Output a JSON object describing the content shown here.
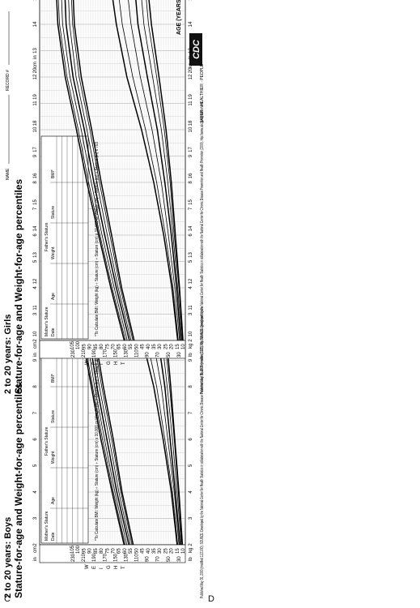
{
  "figure": {
    "panels": [
      {
        "letter": "C",
        "title_line1": "2 to 20 years: Boys",
        "title_line2": "Stature-for-age and Weight-for-age percentiles",
        "name_label": "NAME",
        "record_label": "RECORD #",
        "table_headers": [
          "Mother's Stature",
          "Father's Stature",
          "Date",
          "Age",
          "Weight",
          "Stature",
          "BMI*"
        ],
        "bmi_note": "*To Calculate BMI: Weight (kg) ÷ Stature (cm) ÷ Stature (cm) x 10,000 or Weight (lb) ÷ Stature (in) ÷ Stature (in) x 703",
        "age_caption": "AGE (YEARS)",
        "stature_letters": "STATURE",
        "weight_letters": "WEIGHT",
        "unit_in": "in",
        "unit_cm": "cm",
        "unit_kg": "kg",
        "unit_lb": "lb",
        "footer": "Published May 30, 2000 (modified 11/21/00). SOURCE: Developed by the National Center for Health Statistics in collaboration with the National Center for Chronic Disease Prevention and Health Promotion (2000). http://www.cdc.gov/growthcharts",
        "logo_text": "CDC",
        "logo_tagline": "SAFER · HEALTHIER · PEOPLE"
      },
      {
        "letter": "D",
        "title_line1": "2 to 20 years: Girls",
        "title_line2": "Stature-for-age and Weight-for-age percentiles",
        "name_label": "NAME",
        "record_label": "RECORD #",
        "table_headers": [
          "Mother's Stature",
          "Father's Stature",
          "Date",
          "Age",
          "Weight",
          "Stature",
          "BMI*"
        ],
        "bmi_note": "*To Calculate BMI: Weight (kg) ÷ Stature (cm) ÷ Stature (cm) x 10,000 or Weight (lb) ÷ Stature (in) ÷ Stature (in) x 703",
        "age_caption": "AGE (YEARS)",
        "stature_letters": "STATURE",
        "weight_letters": "WEIGHT",
        "unit_in": "in",
        "unit_cm": "cm",
        "unit_kg": "kg",
        "unit_lb": "lb",
        "footer": "Published May 30, 2000 (modified 11/21/00). SOURCE: Developed by the National Center for Health Statistics in collaboration with the National Center for Chronic Disease Prevention and Health Promotion (2000). http://www.cdc.gov/growthcharts",
        "logo_text": "CDC",
        "logo_tagline": "SAFER · HEALTHIER · PEOPLE"
      }
    ]
  },
  "chart_data": [
    {
      "type": "line",
      "title": "2 to 20 years: Boys Stature-for-age and Weight-for-age percentiles",
      "xlabel": "AGE (YEARS)",
      "x_ticks": [
        2,
        3,
        4,
        5,
        6,
        7,
        8,
        9,
        10,
        11,
        12,
        13,
        14,
        15,
        16,
        17,
        18,
        19,
        20
      ],
      "xlim": [
        2,
        20
      ],
      "stature_axis": {
        "unit": "cm",
        "ylim": [
          78,
          200
        ],
        "ticks": [
          80,
          85,
          90,
          95,
          100,
          105,
          110,
          115,
          120,
          125,
          130,
          135,
          140,
          145,
          150,
          155,
          160,
          165,
          170,
          175,
          180,
          185,
          190,
          195,
          200
        ]
      },
      "stature_axis_in": {
        "unit": "in",
        "ticks": [
          30,
          32,
          34,
          36,
          38,
          40,
          42,
          44,
          46,
          48,
          50,
          52,
          54,
          56,
          58,
          60,
          62,
          64,
          66,
          68,
          70,
          72,
          74,
          76
        ]
      },
      "weight_axis": {
        "unit": "kg",
        "ylim": [
          8,
          105
        ],
        "ticks": [
          10,
          15,
          20,
          25,
          30,
          35,
          40,
          45,
          50,
          55,
          60,
          65,
          70,
          75,
          80,
          85,
          90,
          95,
          100,
          105
        ]
      },
      "weight_axis_lb": {
        "unit": "lb",
        "ticks": [
          30,
          40,
          50,
          60,
          70,
          80,
          90,
          100,
          110,
          120,
          130,
          140,
          150,
          160,
          170,
          180,
          190,
          200,
          210,
          220,
          230
        ]
      },
      "percentiles": [
        "5",
        "10",
        "25",
        "50",
        "75",
        "90",
        "95"
      ],
      "x": [
        2,
        4,
        6,
        8,
        10,
        12,
        14,
        16,
        18,
        20
      ],
      "stature_series": [
        {
          "name": "5",
          "values": [
            82.5,
            96.5,
            107.5,
            120,
            131,
            141,
            153,
            165,
            169,
            170
          ]
        },
        {
          "name": "10",
          "values": [
            84,
            98,
            109.5,
            122,
            133,
            143.5,
            156,
            167,
            171,
            172
          ]
        },
        {
          "name": "25",
          "values": [
            86,
            100.5,
            112.5,
            125,
            135.5,
            147,
            160,
            170.5,
            174,
            174.5
          ]
        },
        {
          "name": "50",
          "values": [
            88,
            103,
            115.5,
            128,
            138.5,
            150.5,
            164,
            174,
            176.5,
            177
          ]
        },
        {
          "name": "75",
          "values": [
            90.5,
            105.5,
            118.5,
            131,
            141.5,
            154,
            168,
            178,
            180.5,
            181
          ]
        },
        {
          "name": "90",
          "values": [
            92.5,
            107.5,
            121,
            133.5,
            145,
            157.5,
            171.5,
            181,
            184,
            184.5
          ]
        },
        {
          "name": "95",
          "values": [
            94,
            109,
            123,
            135,
            147,
            160,
            174,
            183,
            185.5,
            186
          ]
        }
      ],
      "weight_series": [
        {
          "name": "5",
          "values": [
            10.5,
            13.5,
            17,
            20.5,
            24.5,
            30,
            37.5,
            46.5,
            53,
            56
          ]
        },
        {
          "name": "10",
          "values": [
            11,
            14,
            17.5,
            21.5,
            26,
            32,
            40,
            49,
            56,
            59
          ]
        },
        {
          "name": "25",
          "values": [
            11.5,
            15,
            19,
            23.5,
            28.5,
            35.5,
            44.5,
            54,
            60.5,
            63.5
          ]
        },
        {
          "name": "50",
          "values": [
            12.5,
            16.5,
            21,
            25.5,
            32,
            40,
            50,
            60,
            66,
            70
          ]
        },
        {
          "name": "75",
          "values": [
            13.5,
            17.5,
            23,
            28.5,
            36.5,
            46,
            56.5,
            67,
            73,
            77
          ]
        },
        {
          "name": "90",
          "values": [
            14.5,
            19,
            25.5,
            32.5,
            42,
            53,
            64,
            75,
            81,
            85
          ]
        },
        {
          "name": "95",
          "values": [
            15,
            20,
            27,
            35,
            46,
            58,
            69.5,
            80,
            86,
            90
          ]
        }
      ]
    },
    {
      "type": "line",
      "title": "2 to 20 years: Girls Stature-for-age and Weight-for-age percentiles",
      "xlabel": "AGE (YEARS)",
      "x_ticks": [
        2,
        3,
        4,
        5,
        6,
        7,
        8,
        9,
        10,
        11,
        12,
        13,
        14,
        15,
        16,
        17,
        18,
        19,
        20
      ],
      "xlim": [
        2,
        20
      ],
      "stature_axis": {
        "unit": "cm",
        "ylim": [
          78,
          190
        ],
        "ticks": [
          80,
          85,
          90,
          95,
          100,
          105,
          110,
          115,
          120,
          125,
          130,
          135,
          140,
          145,
          150,
          155,
          160,
          165,
          170,
          175,
          180,
          185,
          190
        ]
      },
      "stature_axis_in": {
        "unit": "in",
        "ticks": [
          32,
          34,
          36,
          38,
          40,
          42,
          44,
          46,
          48,
          50,
          52,
          54,
          56,
          58,
          60,
          62,
          64,
          66,
          68,
          70,
          72,
          74
        ]
      },
      "weight_axis": {
        "unit": "kg",
        "ylim": [
          8,
          105
        ],
        "ticks": [
          10,
          15,
          20,
          25,
          30,
          35,
          40,
          45,
          50,
          55,
          60,
          65,
          70,
          75,
          80,
          85,
          90,
          95,
          100,
          105
        ]
      },
      "weight_axis_lb": {
        "unit": "lb",
        "ticks": [
          30,
          40,
          50,
          60,
          70,
          80,
          90,
          100,
          110,
          120,
          130,
          140,
          150,
          160,
          170,
          180,
          190,
          200,
          210,
          220,
          230
        ]
      },
      "percentiles": [
        "5",
        "10",
        "25",
        "50",
        "75",
        "90",
        "95"
      ],
      "x": [
        2,
        4,
        6,
        8,
        10,
        12,
        14,
        16,
        18,
        20
      ],
      "stature_series": [
        {
          "name": "5",
          "values": [
            81,
            95.5,
            107,
            119,
            130,
            142,
            150,
            152.5,
            153,
            153
          ]
        },
        {
          "name": "10",
          "values": [
            82.5,
            97,
            109,
            121,
            132,
            144.5,
            152,
            154.5,
            155,
            155.5
          ]
        },
        {
          "name": "25",
          "values": [
            84.5,
            99.5,
            112,
            124,
            135.5,
            148,
            155.5,
            158,
            158.5,
            159
          ]
        },
        {
          "name": "50",
          "values": [
            86.5,
            101.5,
            115,
            127.5,
            138.5,
            151.5,
            159.5,
            162,
            163,
            163.5
          ]
        },
        {
          "name": "75",
          "values": [
            89,
            104,
            118,
            130.5,
            142,
            155,
            163.5,
            166,
            167,
            167.5
          ]
        },
        {
          "name": "90",
          "values": [
            91,
            106.5,
            120.5,
            133.5,
            145.5,
            158.5,
            167,
            170,
            170.5,
            171
          ]
        },
        {
          "name": "95",
          "values": [
            92.5,
            108,
            122,
            135.5,
            147.5,
            160.5,
            169,
            172,
            173,
            173.5
          ]
        }
      ],
      "weight_series": [
        {
          "name": "5",
          "values": [
            10,
            13,
            16.5,
            20,
            24.5,
            30.5,
            37,
            41.5,
            43.5,
            44.5
          ]
        },
        {
          "name": "10",
          "values": [
            10.5,
            13.5,
            17.5,
            21,
            26,
            32.5,
            39.5,
            43.5,
            45.5,
            46.5
          ]
        },
        {
          "name": "25",
          "values": [
            11,
            14.5,
            18.5,
            23,
            28.5,
            36,
            43.5,
            47.5,
            49.5,
            50.5
          ]
        },
        {
          "name": "50",
          "values": [
            12,
            15.5,
            20,
            25.5,
            32,
            40.5,
            48.5,
            52.5,
            55,
            56
          ]
        },
        {
          "name": "75",
          "values": [
            13,
            17,
            22.5,
            28.5,
            36.5,
            46.5,
            54.5,
            59.5,
            62,
            63.5
          ]
        },
        {
          "name": "90",
          "values": [
            14,
            18.5,
            25,
            32.5,
            42,
            53,
            62,
            67.5,
            71,
            73
          ]
        },
        {
          "name": "95",
          "values": [
            14.5,
            19.5,
            26.5,
            35,
            45.5,
            58,
            67,
            73.5,
            77,
            79.5
          ]
        }
      ]
    }
  ]
}
